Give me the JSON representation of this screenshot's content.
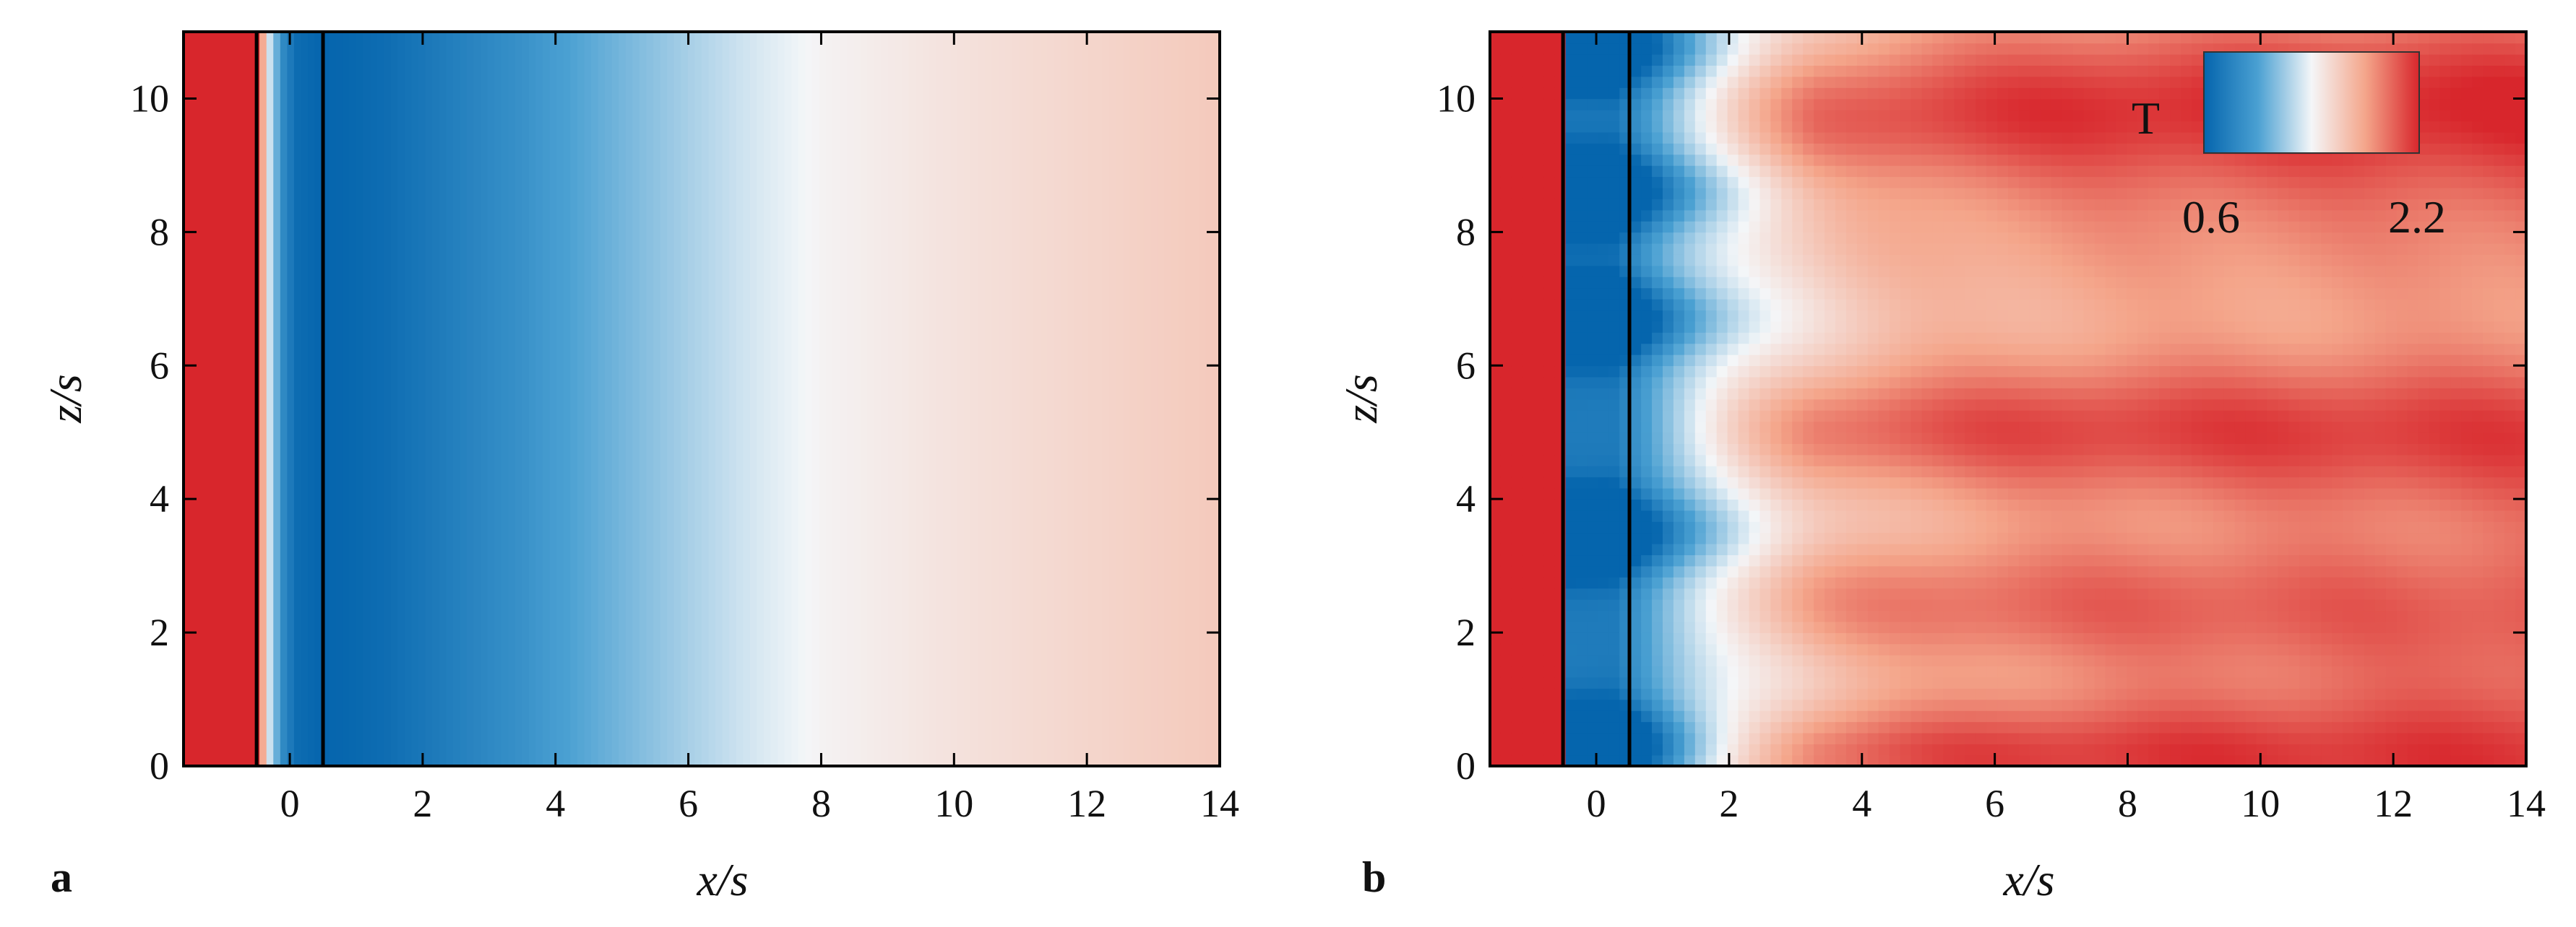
{
  "colors": {
    "cold": "#0565ad",
    "neutral": "#f4f6f8",
    "warm": "#d8262c",
    "wall": "#d62830",
    "frame": "#000000"
  },
  "chart_data": [
    {
      "panel_label": "a",
      "type": "heatmap",
      "title": "",
      "xlabel": "x/s",
      "ylabel": "z/s",
      "xlim": [
        -1.6,
        14
      ],
      "ylim": [
        0,
        11
      ],
      "xticks": [
        0,
        2,
        4,
        6,
        8,
        10,
        12,
        14
      ],
      "yticks": [
        0,
        2,
        4,
        6,
        8,
        10
      ],
      "x_tick_labels": [
        "0",
        "2",
        "4",
        "6",
        "8",
        "10",
        "12",
        "14"
      ],
      "y_tick_labels": [
        "0",
        "2",
        "4",
        "6",
        "8",
        "10"
      ],
      "grid": false,
      "field": "T",
      "wall_lines_x": [
        -0.5,
        0.5
      ],
      "profile_x": [
        -1.6,
        -0.5,
        -0.3,
        -0.1,
        0.1,
        0.5,
        1.0,
        1.5,
        2.0,
        2.5,
        3.0,
        3.5,
        4.0,
        5.0,
        6.0,
        7.0,
        8.0,
        9.0,
        10.0,
        11.0,
        12.0,
        13.0,
        14.0
      ],
      "profile_T": [
        2.2,
        2.2,
        1.3,
        0.85,
        0.65,
        0.6,
        0.62,
        0.66,
        0.72,
        0.78,
        0.84,
        0.9,
        0.98,
        1.1,
        1.22,
        1.33,
        1.42,
        1.46,
        1.5,
        1.53,
        1.56,
        1.59,
        1.62
      ]
    },
    {
      "panel_label": "b",
      "type": "heatmap",
      "title": "",
      "xlabel": "x/s",
      "ylabel": "z/s",
      "xlim": [
        -1.6,
        14
      ],
      "ylim": [
        0,
        11
      ],
      "xticks": [
        0,
        2,
        4,
        6,
        8,
        10,
        12,
        14
      ],
      "yticks": [
        0,
        2,
        4,
        6,
        8,
        10
      ],
      "x_tick_labels": [
        "0",
        "2",
        "4",
        "6",
        "8",
        "10",
        "12",
        "14"
      ],
      "y_tick_labels": [
        "0",
        "2",
        "4",
        "6",
        "8",
        "10"
      ],
      "grid": false,
      "field": "T",
      "wall_lines_x": [
        -0.5,
        0.5
      ],
      "hot_streaks_z": [
        {
          "z": 0.2,
          "T": 2.15,
          "half_width": 0.6
        },
        {
          "z": 2.4,
          "T": 2.0,
          "half_width": 0.7
        },
        {
          "z": 5.0,
          "T": 2.1,
          "half_width": 0.7
        },
        {
          "z": 9.7,
          "T": 2.2,
          "half_width": 0.8
        }
      ],
      "cold_pockets_z": [
        0.3,
        3.5,
        6.7,
        8.6,
        10.8
      ],
      "far_field_T": 1.8,
      "colorbar": {
        "label": "T",
        "min": 0.6,
        "max": 2.2,
        "min_label": "0.6",
        "max_label": "2.2",
        "position": "top-right"
      }
    }
  ]
}
